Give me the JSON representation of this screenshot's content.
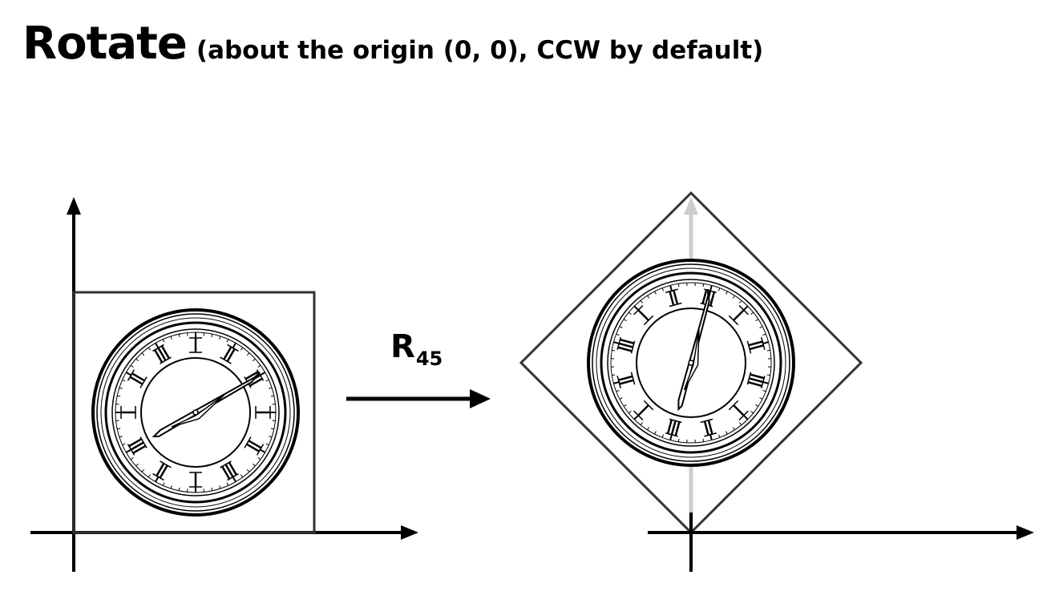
{
  "title": {
    "main": "Rotate",
    "subtitle": "(about the origin (0, 0), CCW by default)"
  },
  "operation": {
    "symbol": "R",
    "angle": "45"
  },
  "colors": {
    "ink": "#000000",
    "frame": "#333333",
    "ghost_axis": "#cccccc"
  },
  "icons": {
    "clock": "clock-face-icon",
    "arrow": "right-arrow-icon"
  }
}
